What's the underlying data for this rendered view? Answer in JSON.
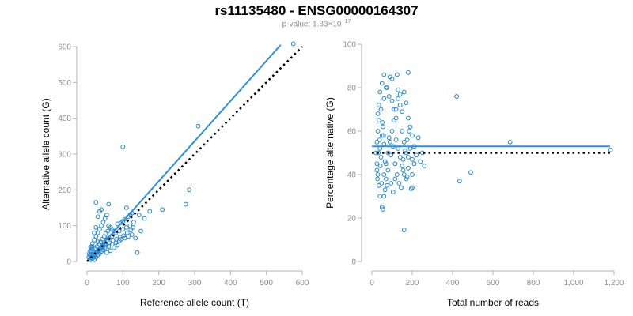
{
  "title": "rs11135480 - ENSG00000164307",
  "subtitle": {
    "prefix": "p-value: 1.83×10",
    "exponent": "−17"
  },
  "colors": {
    "points": "#1f86d6",
    "fit_line": "#2b8fe0",
    "reference_line": "#000000",
    "axes": "#b3b3b3",
    "tick_text": "#8c8c8c"
  },
  "chart_data": [
    {
      "type": "scatter",
      "xlabel": "Reference allele count (T)",
      "ylabel": "Alternative allele count (G)",
      "xlim": [
        0,
        600
      ],
      "ylim": [
        0,
        600
      ],
      "xticks": [
        0,
        100,
        200,
        300,
        400,
        500,
        600
      ],
      "yticks": [
        0,
        100,
        200,
        300,
        400,
        500,
        600
      ],
      "xtick_labels": [
        "0",
        "100",
        "200",
        "300",
        "400",
        "500",
        "600"
      ],
      "ytick_labels": [
        "0",
        "100",
        "200",
        "300",
        "400",
        "500",
        "600"
      ],
      "grid": false,
      "lines": [
        {
          "style": "solid",
          "from": [
            0,
            0
          ],
          "to": [
            540,
            605
          ]
        },
        {
          "style": "dotted",
          "from": [
            0,
            0
          ],
          "to": [
            600,
            600
          ]
        }
      ],
      "points": [
        [
          575,
          608
        ],
        [
          310,
          378
        ],
        [
          100,
          320
        ],
        [
          285,
          200
        ],
        [
          275,
          160
        ],
        [
          140,
          25
        ],
        [
          175,
          140
        ],
        [
          145,
          130
        ],
        [
          130,
          110
        ],
        [
          120,
          100
        ],
        [
          110,
          95
        ],
        [
          100,
          90
        ],
        [
          90,
          85
        ],
        [
          80,
          80
        ],
        [
          70,
          70
        ],
        [
          60,
          65
        ],
        [
          55,
          60
        ],
        [
          50,
          50
        ],
        [
          45,
          45
        ],
        [
          40,
          40
        ],
        [
          35,
          35
        ],
        [
          30,
          30
        ],
        [
          25,
          25
        ],
        [
          20,
          20
        ],
        [
          15,
          15
        ],
        [
          10,
          10
        ],
        [
          8,
          6
        ],
        [
          12,
          20
        ],
        [
          18,
          28
        ],
        [
          22,
          35
        ],
        [
          28,
          42
        ],
        [
          33,
          48
        ],
        [
          38,
          55
        ],
        [
          42,
          62
        ],
        [
          48,
          70
        ],
        [
          52,
          78
        ],
        [
          58,
          85
        ],
        [
          20,
          5
        ],
        [
          25,
          12
        ],
        [
          30,
          18
        ],
        [
          35,
          22
        ],
        [
          40,
          28
        ],
        [
          45,
          32
        ],
        [
          50,
          38
        ],
        [
          60,
          42
        ],
        [
          70,
          48
        ],
        [
          80,
          52
        ],
        [
          90,
          58
        ],
        [
          95,
          62
        ],
        [
          105,
          65
        ],
        [
          115,
          70
        ],
        [
          125,
          75
        ],
        [
          135,
          65
        ],
        [
          85,
          45
        ],
        [
          75,
          38
        ],
        [
          65,
          30
        ],
        [
          55,
          25
        ],
        [
          10,
          40
        ],
        [
          15,
          50
        ],
        [
          20,
          60
        ],
        [
          25,
          70
        ],
        [
          30,
          80
        ],
        [
          35,
          90
        ],
        [
          40,
          100
        ],
        [
          45,
          110
        ],
        [
          50,
          120
        ],
        [
          20,
          80
        ],
        [
          25,
          95
        ],
        [
          30,
          125
        ],
        [
          35,
          140
        ],
        [
          40,
          145
        ],
        [
          55,
          130
        ],
        [
          60,
          160
        ],
        [
          25,
          165
        ],
        [
          30,
          55
        ],
        [
          15,
          35
        ],
        [
          12,
          28
        ],
        [
          8,
          18
        ],
        [
          5,
          12
        ],
        [
          18,
          12
        ],
        [
          22,
          18
        ],
        [
          28,
          25
        ],
        [
          32,
          30
        ],
        [
          38,
          35
        ],
        [
          44,
          40
        ],
        [
          52,
          45
        ],
        [
          62,
          52
        ],
        [
          72,
          58
        ],
        [
          82,
          62
        ],
        [
          92,
          68
        ],
        [
          102,
          72
        ],
        [
          112,
          80
        ],
        [
          122,
          88
        ],
        [
          128,
          95
        ],
        [
          60,
          100
        ],
        [
          65,
          95
        ],
        [
          70,
          90
        ],
        [
          75,
          85
        ],
        [
          85,
          105
        ],
        [
          95,
          108
        ],
        [
          100,
          112
        ],
        [
          105,
          118
        ],
        [
          115,
          125
        ],
        [
          120,
          130
        ],
        [
          125,
          135
        ],
        [
          110,
          150
        ],
        [
          150,
          85
        ],
        [
          160,
          120
        ],
        [
          210,
          145
        ],
        [
          15,
          8
        ],
        [
          10,
          5
        ],
        [
          6,
          22
        ],
        [
          9,
          30
        ],
        [
          12,
          35
        ],
        [
          14,
          42
        ]
      ]
    },
    {
      "type": "scatter",
      "xlabel": "Total number of reads",
      "ylabel": "Percentage alternative (G)",
      "xlim": [
        0,
        1200
      ],
      "ylim": [
        0,
        100
      ],
      "xticks": [
        0,
        200,
        400,
        600,
        800,
        1000,
        1200
      ],
      "yticks": [
        0,
        20,
        40,
        60,
        80,
        100
      ],
      "xtick_labels": [
        "0",
        "200",
        "400",
        "600",
        "800",
        "1,000",
        "1,200"
      ],
      "ytick_labels": [
        "0",
        "20",
        "40",
        "60",
        "80",
        "100"
      ],
      "grid": false,
      "lines": [
        {
          "style": "solid",
          "from": [
            0,
            53
          ],
          "to": [
            1180,
            53
          ]
        },
        {
          "style": "dotted",
          "from": [
            0,
            50
          ],
          "to": [
            1180,
            50
          ]
        }
      ],
      "points": [
        [
          1183,
          51.4
        ],
        [
          685,
          55
        ],
        [
          420,
          76
        ],
        [
          435,
          37
        ],
        [
          490,
          41
        ],
        [
          210,
          45
        ],
        [
          200,
          40
        ],
        [
          195,
          33.5
        ],
        [
          160,
          14.5
        ],
        [
          180,
          87
        ],
        [
          130,
          79
        ],
        [
          125,
          86
        ],
        [
          100,
          84
        ],
        [
          90,
          85
        ],
        [
          75,
          80
        ],
        [
          60,
          75
        ],
        [
          45,
          70
        ],
        [
          35,
          65
        ],
        [
          30,
          60
        ],
        [
          25,
          55
        ],
        [
          20,
          50
        ],
        [
          25,
          45
        ],
        [
          30,
          40
        ],
        [
          35,
          35
        ],
        [
          40,
          30
        ],
        [
          50,
          25
        ],
        [
          55,
          24
        ],
        [
          60,
          40
        ],
        [
          70,
          45
        ],
        [
          80,
          50
        ],
        [
          90,
          55
        ],
        [
          100,
          60
        ],
        [
          110,
          65
        ],
        [
          120,
          70
        ],
        [
          130,
          75
        ],
        [
          140,
          77
        ],
        [
          150,
          60
        ],
        [
          160,
          55
        ],
        [
          170,
          50
        ],
        [
          180,
          48
        ],
        [
          190,
          52
        ],
        [
          200,
          47
        ],
        [
          210,
          53
        ],
        [
          220,
          49
        ],
        [
          230,
          57
        ],
        [
          240,
          46
        ],
        [
          250,
          50
        ],
        [
          260,
          44
        ],
        [
          40,
          52
        ],
        [
          45,
          48
        ],
        [
          50,
          58
        ],
        [
          55,
          62
        ],
        [
          60,
          54
        ],
        [
          65,
          46
        ],
        [
          70,
          38
        ],
        [
          75,
          35
        ],
        [
          80,
          42
        ],
        [
          85,
          57
        ],
        [
          95,
          49
        ],
        [
          105,
          53
        ],
        [
          115,
          45
        ],
        [
          125,
          40
        ],
        [
          135,
          36
        ],
        [
          145,
          34
        ],
        [
          155,
          47
        ],
        [
          165,
          51
        ],
        [
          175,
          56
        ],
        [
          185,
          60
        ],
        [
          30,
          68
        ],
        [
          35,
          72
        ],
        [
          40,
          78
        ],
        [
          50,
          82
        ],
        [
          60,
          86
        ],
        [
          70,
          80
        ],
        [
          85,
          76
        ],
        [
          100,
          74
        ],
        [
          110,
          70
        ],
        [
          120,
          66
        ],
        [
          140,
          72
        ],
        [
          150,
          69
        ],
        [
          160,
          78
        ],
        [
          170,
          73
        ],
        [
          180,
          66
        ],
        [
          190,
          62
        ],
        [
          200,
          58
        ],
        [
          120,
          56
        ],
        [
          130,
          52
        ],
        [
          140,
          48
        ],
        [
          150,
          44
        ],
        [
          160,
          40
        ],
        [
          170,
          38
        ],
        [
          60,
          30
        ],
        [
          65,
          33
        ],
        [
          25,
          42
        ],
        [
          28,
          38
        ],
        [
          32,
          50
        ],
        [
          38,
          56
        ],
        [
          42,
          44
        ],
        [
          48,
          36
        ],
        [
          52,
          64
        ],
        [
          58,
          58
        ],
        [
          95,
          36
        ],
        [
          105,
          32
        ],
        [
          115,
          38
        ],
        [
          200,
          34
        ],
        [
          180,
          43
        ],
        [
          175,
          39
        ],
        [
          155,
          42
        ]
      ]
    }
  ]
}
